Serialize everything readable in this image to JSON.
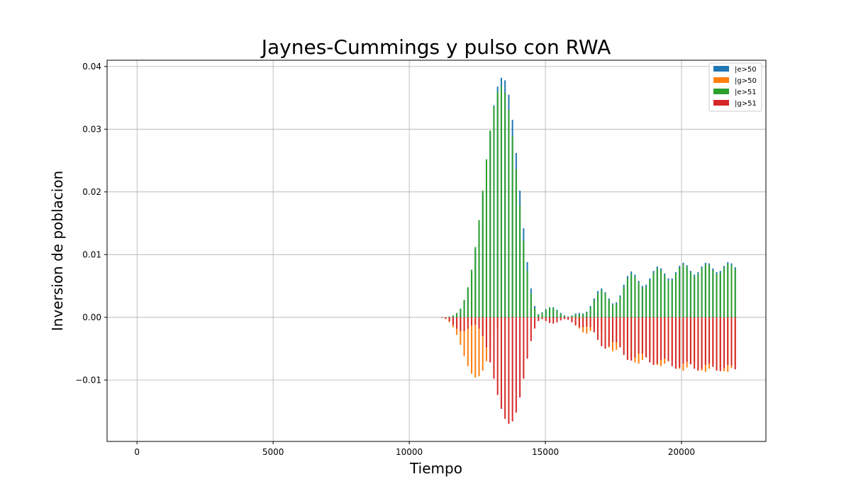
{
  "chart_data": {
    "type": "bar",
    "title": "Jaynes-Cummings y pulso con RWA",
    "xlabel": "Tiempo",
    "ylabel": "Inversion de poblacion",
    "xlim": [
      -1100,
      23100
    ],
    "ylim": [
      -0.0198,
      0.041
    ],
    "xticks": [
      0,
      5000,
      10000,
      15000,
      20000
    ],
    "xtick_labels": [
      "0",
      "5000",
      "10000",
      "15000",
      "20000"
    ],
    "yticks": [
      -0.01,
      0.0,
      0.01,
      0.02,
      0.03,
      0.04
    ],
    "ytick_labels": [
      "−0.01",
      "0.00",
      "0.01",
      "0.02",
      "0.03",
      "0.04"
    ],
    "grid": true,
    "legend_position": "top-right",
    "colors": {
      "e50": "#1f77b4",
      "g50": "#ff7f0e",
      "e51": "#2ca02c",
      "g51": "#d62728"
    },
    "x": [
      11200,
      11336,
      11473,
      11609,
      11745,
      11882,
      12018,
      12155,
      12291,
      12427,
      12564,
      12700,
      12836,
      12973,
      13109,
      13245,
      13382,
      13518,
      13655,
      13791,
      13927,
      14064,
      14200,
      14336,
      14473,
      14609,
      14745,
      14882,
      15018,
      15155,
      15291,
      15427,
      15564,
      15700,
      15836,
      15973,
      16109,
      16245,
      16382,
      16518,
      16655,
      16791,
      16927,
      17064,
      17200,
      17336,
      17473,
      17609,
      17745,
      17882,
      18018,
      18155,
      18291,
      18427,
      18564,
      18700,
      18836,
      18973,
      19109,
      19245,
      19382,
      19518,
      19655,
      19791,
      19927,
      20064,
      20200,
      20336,
      20473,
      20609,
      20745,
      20882,
      21018,
      21155,
      21291,
      21427,
      21564,
      21700,
      21836,
      21973
    ],
    "series": [
      {
        "name": "|e>50",
        "key": "e50",
        "values": [
          0.0,
          0.0,
          0.0001,
          0.0002,
          0.0005,
          0.0012,
          0.0025,
          0.0045,
          0.0072,
          0.0108,
          0.015,
          0.0198,
          0.0248,
          0.0296,
          0.0338,
          0.0368,
          0.0382,
          0.0378,
          0.0355,
          0.0315,
          0.0262,
          0.0202,
          0.0142,
          0.0088,
          0.0046,
          0.0018,
          0.0005,
          0.0008,
          0.0013,
          0.0016,
          0.0016,
          0.0012,
          0.0007,
          0.0003,
          0.0001,
          0.0003,
          0.0006,
          0.0007,
          0.0006,
          0.0009,
          0.0018,
          0.003,
          0.0042,
          0.0046,
          0.004,
          0.003,
          0.0022,
          0.0024,
          0.0035,
          0.0052,
          0.0066,
          0.0073,
          0.0068,
          0.0058,
          0.005,
          0.0052,
          0.0062,
          0.0074,
          0.0081,
          0.0078,
          0.007,
          0.0062,
          0.0062,
          0.0072,
          0.0082,
          0.0087,
          0.0083,
          0.0074,
          0.0068,
          0.0072,
          0.0081,
          0.0087,
          0.0086,
          0.0078,
          0.0072,
          0.0074,
          0.0082,
          0.0088,
          0.0086,
          0.008
        ]
      },
      {
        "name": "|g>50",
        "key": "g50",
        "values": [
          -0.0001,
          -0.0003,
          -0.0008,
          -0.0016,
          -0.0028,
          -0.0044,
          -0.0062,
          -0.0078,
          -0.009,
          -0.0096,
          -0.0094,
          -0.0085,
          -0.007,
          -0.0052,
          -0.0034,
          -0.0018,
          -0.0008,
          -0.0004,
          -0.0003,
          -0.0002,
          -0.0001,
          0.0,
          0.0,
          0.0,
          0.0,
          -0.0001,
          -0.0002,
          -0.0003,
          -0.0004,
          -0.0004,
          -0.0003,
          -0.0002,
          -0.0001,
          -0.0001,
          -0.0003,
          -0.0007,
          -0.0012,
          -0.0018,
          -0.0024,
          -0.0026,
          -0.0022,
          -0.0016,
          -0.0014,
          -0.0022,
          -0.0036,
          -0.0048,
          -0.0054,
          -0.0052,
          -0.0046,
          -0.0044,
          -0.0052,
          -0.0064,
          -0.0072,
          -0.0074,
          -0.0068,
          -0.006,
          -0.006,
          -0.0068,
          -0.0076,
          -0.0078,
          -0.0074,
          -0.0068,
          -0.0068,
          -0.0074,
          -0.0082,
          -0.0085,
          -0.008,
          -0.0074,
          -0.0072,
          -0.0078,
          -0.0085,
          -0.0087,
          -0.0082,
          -0.0075,
          -0.0074,
          -0.008,
          -0.0086,
          -0.0087,
          -0.0081,
          -0.0076
        ]
      },
      {
        "name": "|e>51",
        "key": "e51",
        "values": [
          0.0,
          0.0,
          0.0001,
          0.0003,
          0.0007,
          0.0014,
          0.0028,
          0.0048,
          0.0076,
          0.0112,
          0.0155,
          0.0202,
          0.0252,
          0.0298,
          0.0336,
          0.036,
          0.0368,
          0.0358,
          0.0331,
          0.0289,
          0.0236,
          0.0178,
          0.0122,
          0.0074,
          0.0038,
          0.0014,
          0.0004,
          0.0007,
          0.0012,
          0.0015,
          0.0015,
          0.0011,
          0.0006,
          0.0002,
          0.0,
          0.0002,
          0.0004,
          0.0005,
          0.0005,
          0.0008,
          0.0016,
          0.0027,
          0.0038,
          0.0043,
          0.0038,
          0.0028,
          0.002,
          0.0022,
          0.0032,
          0.0048,
          0.0062,
          0.0069,
          0.0065,
          0.0055,
          0.0047,
          0.0049,
          0.0059,
          0.0071,
          0.0078,
          0.0075,
          0.0067,
          0.0059,
          0.0059,
          0.0069,
          0.0079,
          0.0084,
          0.008,
          0.0071,
          0.0065,
          0.0069,
          0.0078,
          0.0084,
          0.0083,
          0.0075,
          0.0069,
          0.0071,
          0.0079,
          0.0085,
          0.0083,
          0.0077
        ]
      },
      {
        "name": "|g>51",
        "key": "g51",
        "values": [
          -0.0001,
          -0.0002,
          -0.0006,
          -0.0012,
          -0.0018,
          -0.0022,
          -0.0022,
          -0.0018,
          -0.0013,
          -0.0012,
          -0.0018,
          -0.003,
          -0.0048,
          -0.0072,
          -0.0098,
          -0.0124,
          -0.0146,
          -0.0162,
          -0.017,
          -0.0166,
          -0.0152,
          -0.0128,
          -0.0098,
          -0.0066,
          -0.0038,
          -0.0018,
          -0.0006,
          -0.0003,
          -0.0006,
          -0.0009,
          -0.001,
          -0.0008,
          -0.0005,
          -0.0003,
          -0.0004,
          -0.0008,
          -0.0013,
          -0.0016,
          -0.0016,
          -0.0015,
          -0.0016,
          -0.0024,
          -0.0036,
          -0.0046,
          -0.005,
          -0.0046,
          -0.004,
          -0.004,
          -0.0048,
          -0.006,
          -0.0068,
          -0.0069,
          -0.0064,
          -0.0058,
          -0.0058,
          -0.0064,
          -0.0072,
          -0.0076,
          -0.0074,
          -0.0068,
          -0.0066,
          -0.007,
          -0.0078,
          -0.0082,
          -0.008,
          -0.0074,
          -0.0071,
          -0.0075,
          -0.0082,
          -0.0085,
          -0.0082,
          -0.0076,
          -0.0074,
          -0.0079,
          -0.0085,
          -0.0086,
          -0.0081,
          -0.0076,
          -0.0077,
          -0.0083
        ]
      }
    ]
  }
}
